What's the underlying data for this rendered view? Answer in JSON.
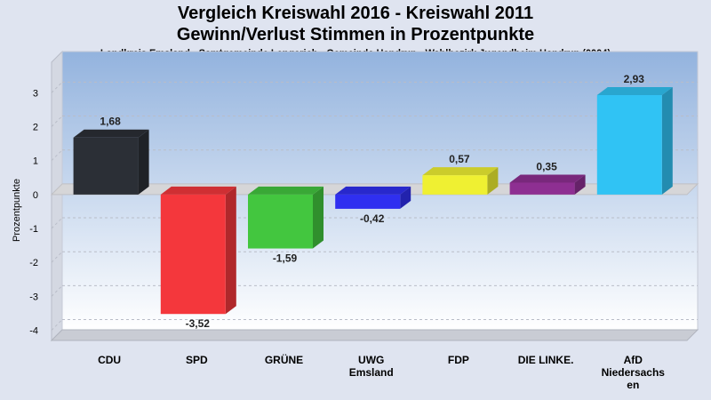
{
  "title": "Vergleich Kreiswahl 2016 - Kreiswahl 2011",
  "subtitle": "Gewinn/Verlust Stimmen in Prozentpunkte",
  "location": "Landkreis Emsland - Samtgemeinde Lengerich - Gemeinde Handrup - Wahlbezirk Jugendheim Handrup (0004)",
  "chart_data": {
    "type": "bar",
    "ylabel": "Prozentpunkte",
    "xlabel": "",
    "ylim": [
      -4.3,
      3.9
    ],
    "yticks": [
      3,
      2,
      1,
      0,
      -1,
      -2,
      -3,
      -4
    ],
    "grid": true,
    "categories": [
      [
        "CDU"
      ],
      [
        "SPD"
      ],
      [
        "GRÜNE"
      ],
      [
        "UWG",
        "Emsland"
      ],
      [
        "FDP"
      ],
      [
        "DIE LINKE."
      ],
      [
        "AfD",
        "Niedersachs",
        "en"
      ]
    ],
    "values": [
      1.68,
      -3.52,
      -1.59,
      -0.42,
      0.57,
      0.35,
      2.93
    ],
    "value_labels": [
      "1,68",
      "-3,52",
      "-1,59",
      "-0,42",
      "0,57",
      "0,35",
      "2,93"
    ],
    "colors": [
      "#2b2f36",
      "#f4373c",
      "#43c63f",
      "#2f2ff0",
      "#eff032",
      "#8e2f92",
      "#30c3f4"
    ]
  }
}
